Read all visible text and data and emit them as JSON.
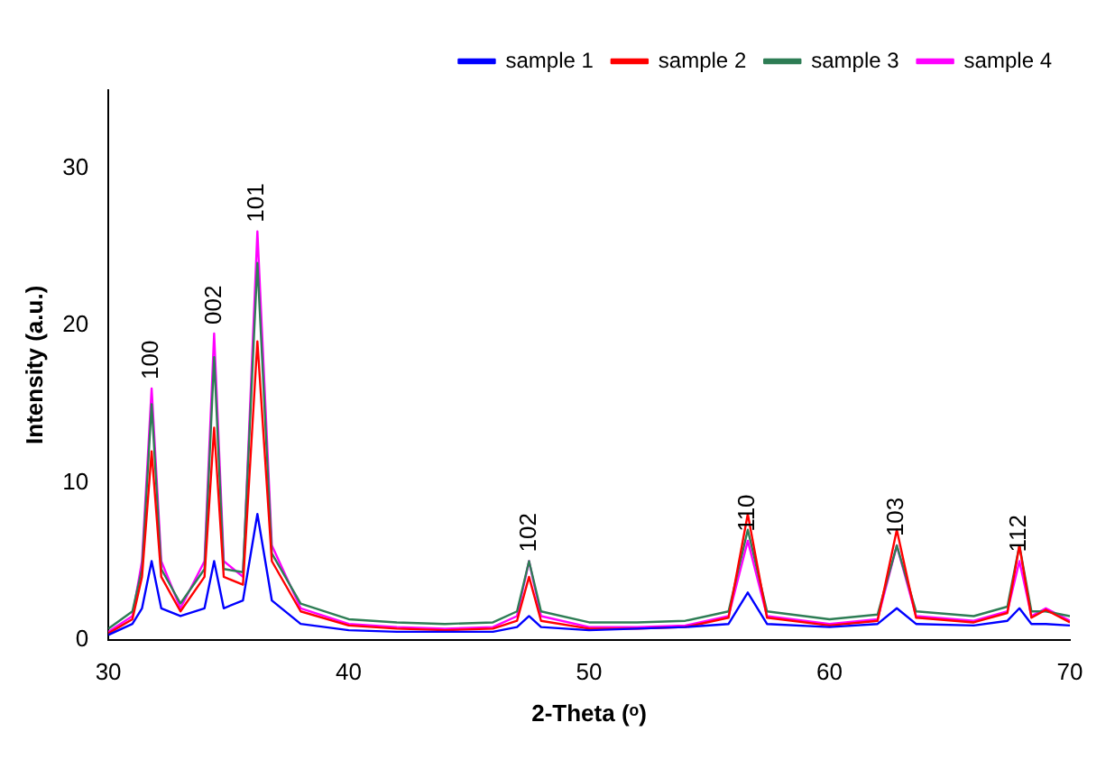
{
  "chart_data": {
    "type": "line",
    "xlabel": "2-Theta (ᵒ)",
    "ylabel": "Intensity (a.u.)",
    "x": [
      30,
      31,
      31.4,
      31.8,
      32.2,
      33,
      34,
      34.4,
      34.8,
      35.6,
      36.2,
      36.8,
      38,
      40,
      42,
      44,
      46,
      47,
      47.5,
      48,
      50,
      52,
      54,
      55.8,
      56.6,
      57.4,
      60,
      62,
      62.8,
      63.6,
      66,
      67.4,
      67.9,
      68.4,
      69,
      70
    ],
    "series": [
      {
        "name": "sample 1",
        "color": "#0000ff",
        "values": [
          0.3,
          1,
          2,
          5,
          2,
          1.5,
          2,
          5,
          2,
          2.5,
          8,
          2.5,
          1,
          0.6,
          0.5,
          0.5,
          0.5,
          0.8,
          1.5,
          0.8,
          0.6,
          0.7,
          0.8,
          1,
          3,
          1,
          0.8,
          1,
          2,
          1,
          0.9,
          1.2,
          2,
          1,
          1,
          0.9
        ]
      },
      {
        "name": "sample 2",
        "color": "#ff0000",
        "values": [
          0.4,
          1.3,
          4,
          12,
          4,
          1.8,
          4,
          13.5,
          4,
          3.5,
          19,
          5,
          1.8,
          0.9,
          0.7,
          0.6,
          0.7,
          1.2,
          4,
          1.2,
          0.7,
          0.7,
          0.8,
          1.4,
          8,
          1.4,
          0.9,
          1.2,
          7,
          1.4,
          1.1,
          1.7,
          6,
          1.4,
          1.9,
          1.1
        ]
      },
      {
        "name": "sample 3",
        "color": "#2e7d55",
        "values": [
          0.7,
          1.8,
          4.5,
          15,
          4.5,
          2.3,
          4.5,
          18,
          4.5,
          4.3,
          24,
          5.5,
          2.3,
          1.3,
          1.1,
          1,
          1.1,
          1.8,
          5,
          1.8,
          1.1,
          1.1,
          1.2,
          1.8,
          7,
          1.8,
          1.3,
          1.6,
          6,
          1.8,
          1.5,
          2.1,
          6,
          1.8,
          1.8,
          1.5
        ]
      },
      {
        "name": "sample 4",
        "color": "#ff00ff",
        "values": [
          0.5,
          1.5,
          5,
          16,
          5,
          2,
          5,
          19.5,
          5,
          4,
          26,
          6,
          2,
          1,
          0.8,
          0.7,
          0.8,
          1.5,
          5,
          1.5,
          0.8,
          0.8,
          0.9,
          1.5,
          6.3,
          1.5,
          1,
          1.3,
          6,
          1.5,
          1.2,
          1.8,
          5,
          1.5,
          2,
          1.2
        ]
      }
    ],
    "xlim": [
      30,
      70
    ],
    "xticks": [
      30,
      40,
      50,
      60,
      70
    ],
    "ylim": [
      0,
      35
    ],
    "yticks": [
      0,
      10,
      20,
      30
    ],
    "grid": false,
    "legend": "top right",
    "marker": "none",
    "line_style": "solid",
    "annotations": [
      {
        "text": "100",
        "x": 31.8,
        "y": 16
      },
      {
        "text": "002",
        "x": 34.4,
        "y": 19.5
      },
      {
        "text": "101",
        "x": 36.2,
        "y": 26
      },
      {
        "text": "102",
        "x": 47.5,
        "y": 5
      },
      {
        "text": "110",
        "x": 56.6,
        "y": 6.3
      },
      {
        "text": "103",
        "x": 62.8,
        "y": 6
      },
      {
        "text": "112",
        "x": 67.9,
        "y": 5
      }
    ]
  }
}
